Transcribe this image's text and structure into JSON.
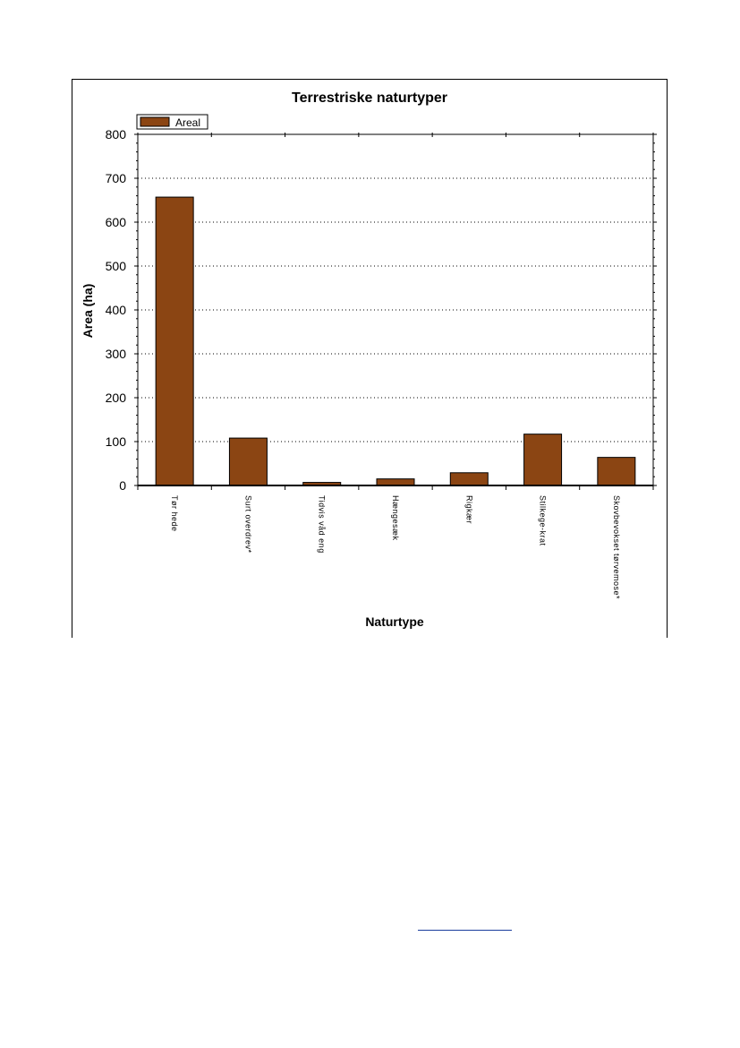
{
  "chart_data": {
    "type": "bar",
    "title": "Terrestriske naturtyper",
    "xlabel": "Naturtype",
    "ylabel": "Area (ha)",
    "ylim": [
      0,
      800
    ],
    "yticks": [
      0,
      100,
      200,
      300,
      400,
      500,
      600,
      700,
      800
    ],
    "grid": true,
    "legend_position": "top-left",
    "categories": [
      "Tør hede",
      "Surt overdrev*",
      "Tidvis våd eng",
      "Hængesæk",
      "Rigkær",
      "Stilkege-krat",
      "Skovbevokset tørvemose*"
    ],
    "series": [
      {
        "name": "Areal",
        "color": "#8b4513",
        "values": [
          657,
          108,
          7,
          15,
          29,
          117,
          64
        ]
      }
    ]
  }
}
